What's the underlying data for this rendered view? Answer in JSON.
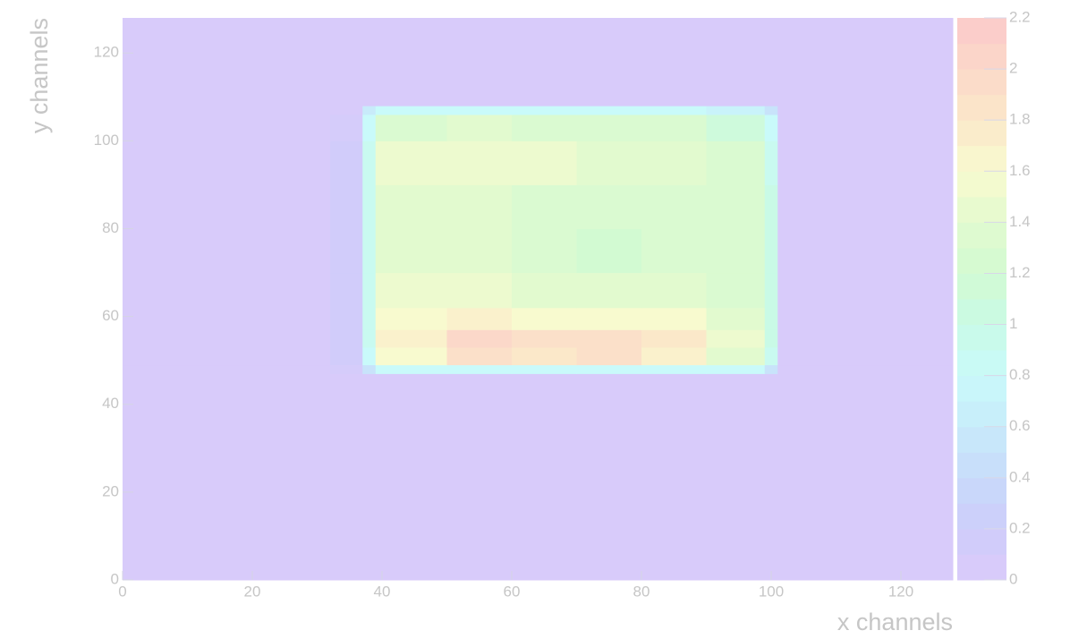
{
  "chart_data": {
    "type": "heatmap",
    "xlabel": "x channels",
    "ylabel": "y channels",
    "xlim": [
      0,
      128
    ],
    "ylim": [
      0,
      128
    ],
    "zlim": [
      0,
      2.2
    ],
    "xticks": [
      0,
      20,
      40,
      60,
      80,
      100,
      120
    ],
    "yticks": [
      0,
      20,
      40,
      60,
      80,
      100,
      120
    ],
    "zticks": [
      0,
      0.2,
      0.4,
      0.6,
      0.8,
      1,
      1.2,
      1.4,
      1.6,
      1.8,
      2,
      2.2
    ],
    "colorscale": [
      [
        0,
        "#dccbfa"
      ],
      [
        0.2,
        "#cdccfa"
      ],
      [
        0.4,
        "#c8dbfa"
      ],
      [
        0.6,
        "#c8ebfa"
      ],
      [
        0.8,
        "#c9fafa"
      ],
      [
        1,
        "#c9fae6"
      ],
      [
        1.2,
        "#d2fad2"
      ],
      [
        1.4,
        "#e2facf"
      ],
      [
        1.6,
        "#f8facf"
      ],
      [
        1.8,
        "#fbe8c9"
      ],
      [
        2,
        "#fbd8c9"
      ],
      [
        2.2,
        "#fbcaca"
      ]
    ],
    "x_bins": [
      0,
      32,
      37,
      39,
      50,
      60,
      70,
      80,
      90,
      99,
      101,
      128
    ],
    "y_bins": [
      0,
      47,
      49,
      53,
      57,
      62,
      70,
      80,
      90,
      100,
      106,
      108,
      128
    ],
    "z": [
      [
        0.05,
        0.05,
        0.05,
        0.05,
        0.05,
        0.05,
        0.05,
        0.05,
        0.05,
        0.05,
        0.05
      ],
      [
        0.05,
        0.1,
        0.5,
        0.8,
        0.8,
        0.8,
        0.8,
        0.8,
        0.8,
        0.5,
        0.05
      ],
      [
        0.05,
        0.15,
        0.8,
        1.6,
        1.9,
        1.8,
        1.9,
        1.7,
        1.4,
        0.9,
        0.05
      ],
      [
        0.05,
        0.15,
        0.9,
        1.7,
        2.0,
        1.9,
        1.9,
        1.8,
        1.5,
        1.0,
        0.05
      ],
      [
        0.05,
        0.15,
        0.9,
        1.6,
        1.7,
        1.6,
        1.6,
        1.6,
        1.4,
        1.0,
        0.05
      ],
      [
        0.05,
        0.15,
        0.9,
        1.5,
        1.5,
        1.4,
        1.4,
        1.4,
        1.3,
        1.0,
        0.05
      ],
      [
        0.05,
        0.15,
        0.9,
        1.4,
        1.4,
        1.3,
        1.2,
        1.3,
        1.3,
        1.0,
        0.05
      ],
      [
        0.05,
        0.15,
        0.9,
        1.4,
        1.4,
        1.3,
        1.3,
        1.3,
        1.3,
        1.0,
        0.05
      ],
      [
        0.05,
        0.15,
        0.9,
        1.5,
        1.5,
        1.5,
        1.4,
        1.4,
        1.3,
        0.9,
        0.05
      ],
      [
        0.05,
        0.1,
        0.8,
        1.3,
        1.4,
        1.3,
        1.3,
        1.3,
        1.1,
        0.8,
        0.05
      ],
      [
        0.05,
        0.05,
        0.6,
        0.8,
        0.8,
        0.8,
        0.8,
        0.8,
        0.7,
        0.5,
        0.05
      ],
      [
        0.05,
        0.05,
        0.05,
        0.05,
        0.05,
        0.05,
        0.05,
        0.05,
        0.05,
        0.05,
        0.05
      ]
    ]
  }
}
